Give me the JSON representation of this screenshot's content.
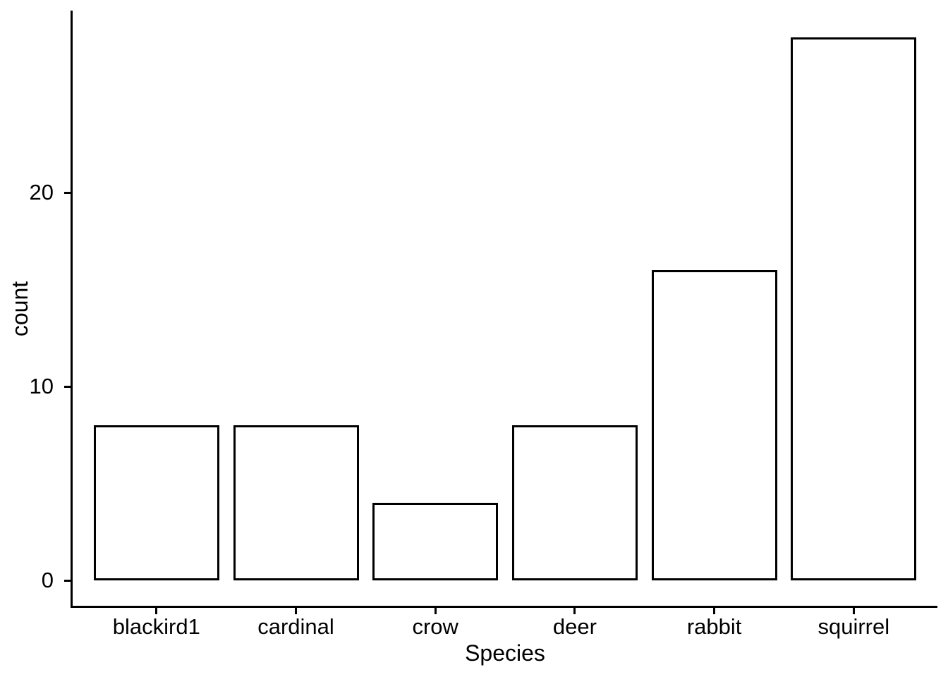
{
  "chart_data": {
    "type": "bar",
    "title": "",
    "xlabel": "Species",
    "ylabel": "count",
    "categories": [
      "blackird1",
      "cardinal",
      "crow",
      "deer",
      "rabbit",
      "squirrel"
    ],
    "values": [
      8,
      8,
      4,
      8,
      16,
      28
    ],
    "y_ticks": [
      0,
      10,
      20
    ],
    "ylim": [
      0,
      28
    ],
    "grid": false,
    "legend": "none",
    "bar_fill": "#ffffff",
    "bar_stroke": "#000000",
    "axis_color": "#000000",
    "text_color": "#000000",
    "background": "#ffffff"
  }
}
